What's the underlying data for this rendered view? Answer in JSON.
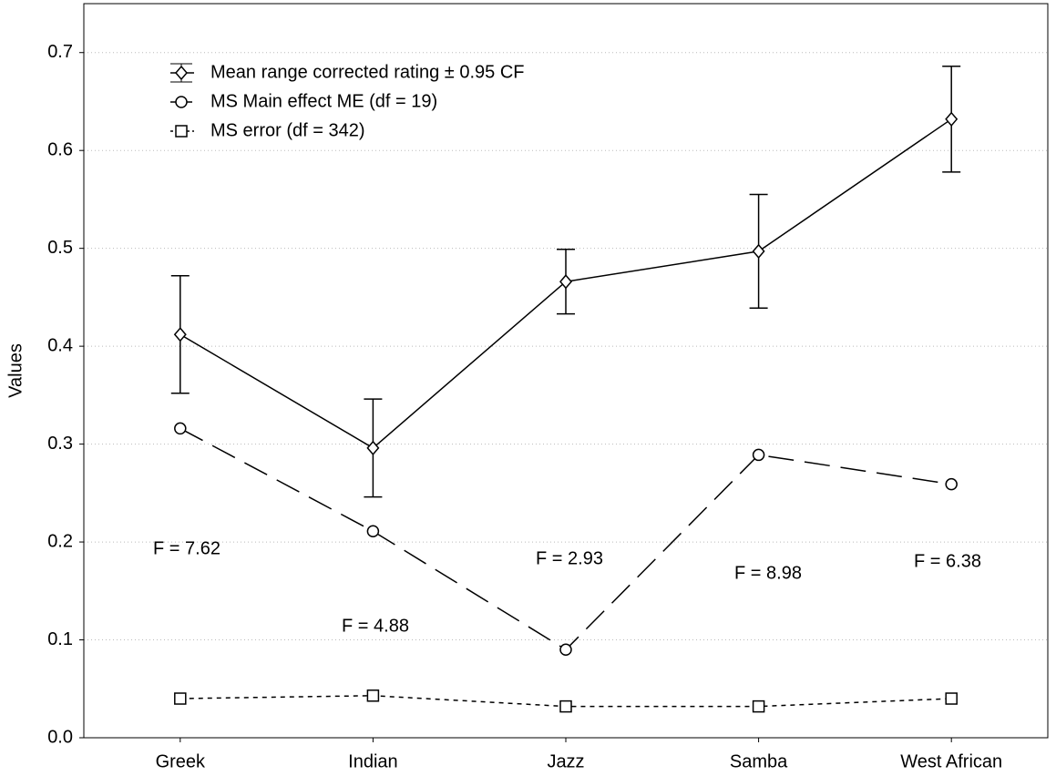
{
  "chart_data": {
    "type": "line",
    "y_label": "Values",
    "categories": [
      "Greek",
      "Indian",
      "Jazz",
      "Samba",
      "West African"
    ],
    "series": [
      {
        "name": "Mean range corrected rating ± 0.95 CF",
        "color": "#000000",
        "marker": "diamond",
        "line_style": "solid",
        "values": [
          0.412,
          0.296,
          0.466,
          0.497,
          0.632
        ],
        "errors": [
          0.06,
          0.05,
          0.033,
          0.058,
          0.054
        ]
      },
      {
        "name": "MS Main effect ME (df = 19)",
        "color": "#000000",
        "marker": "circle",
        "line_style": "long-dash",
        "values": [
          0.316,
          0.211,
          0.09,
          0.289,
          0.259
        ]
      },
      {
        "name": "MS error (df = 342)",
        "color": "#000000",
        "marker": "square",
        "line_style": "short-dash",
        "values": [
          0.04,
          0.043,
          0.032,
          0.032,
          0.04
        ]
      }
    ],
    "annotations": [
      "F = 7.62",
      "F = 4.88",
      "F = 2.93",
      "F = 8.98",
      "F = 6.38"
    ],
    "ylim": [
      0,
      0.75
    ],
    "yticks": [
      {
        "value": 0,
        "label": "0.0"
      },
      0.1,
      0.2,
      0.3,
      0.4,
      0.5,
      0.6,
      0.7
    ],
    "grid": true,
    "legend": "upper-left"
  }
}
